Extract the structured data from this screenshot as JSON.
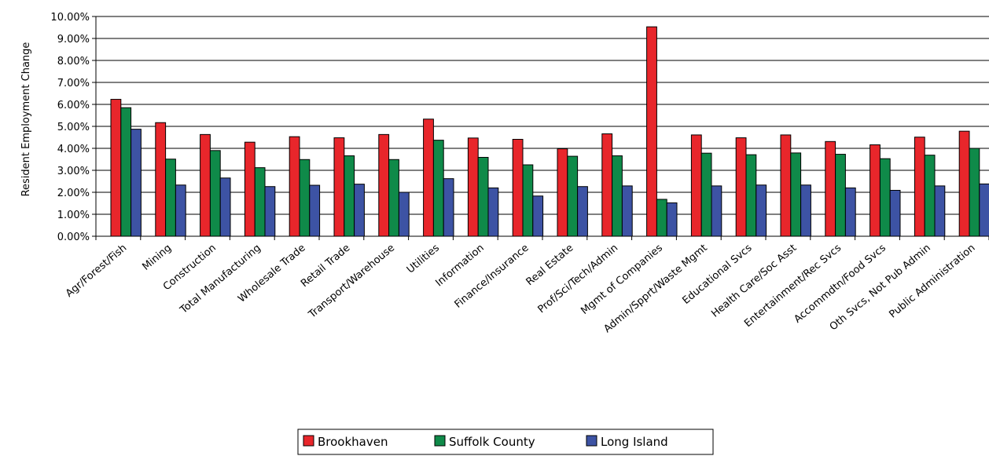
{
  "chart_data": {
    "type": "bar",
    "title": "",
    "xlabel": "",
    "ylabel": "Resident Employment Change",
    "ylim": [
      0,
      0.1
    ],
    "ytick_step": 0.01,
    "ytick_labels": [
      "0.00%",
      "1.00%",
      "2.00%",
      "3.00%",
      "4.00%",
      "5.00%",
      "6.00%",
      "7.00%",
      "8.00%",
      "9.00%",
      "10.00%"
    ],
    "grid": true,
    "legend_position": "bottom",
    "categories": [
      "Agr/Forest/Fish",
      "Mining",
      "Construction",
      "Total Manufacturing",
      "Wholesale Trade",
      "Retail Trade",
      "Transport/Warehouse",
      "Utilities",
      "Information",
      "Finance/Insurance",
      "Real Estate",
      "Prof/Sci/Tech/Admin",
      "Mgmt of Companies",
      "Admin/Spprt/Waste Mgmt",
      "Educational Svcs",
      "Health Care/Soc Asst",
      "Entertainment/Rec Svcs",
      "Accommdtn/Food Svcs",
      "Oth Svcs, Not Pub Admin",
      "Public Administration"
    ],
    "series": [
      {
        "name": "Brookhaven",
        "color": "#e8262b",
        "values": [
          0.0623,
          0.0517,
          0.0463,
          0.0428,
          0.0453,
          0.0448,
          0.0463,
          0.0533,
          0.0447,
          0.0441,
          0.0398,
          0.0466,
          0.0953,
          0.0461,
          0.0448,
          0.0461,
          0.0431,
          0.0416,
          0.0451,
          0.0478
        ]
      },
      {
        "name": "Suffolk County",
        "color": "#0f8a49",
        "values": [
          0.0585,
          0.0351,
          0.039,
          0.0312,
          0.0349,
          0.0366,
          0.0349,
          0.0437,
          0.0359,
          0.0325,
          0.0364,
          0.0366,
          0.0168,
          0.0378,
          0.0371,
          0.0379,
          0.0373,
          0.0353,
          0.0369,
          0.04
        ]
      },
      {
        "name": "Long Island",
        "color": "#3d53a4",
        "values": [
          0.0487,
          0.0233,
          0.0265,
          0.0226,
          0.0232,
          0.0237,
          0.02,
          0.0262,
          0.022,
          0.0183,
          0.0226,
          0.0229,
          0.0152,
          0.0229,
          0.0233,
          0.0233,
          0.022,
          0.0209,
          0.0229,
          0.0238
        ]
      }
    ]
  }
}
